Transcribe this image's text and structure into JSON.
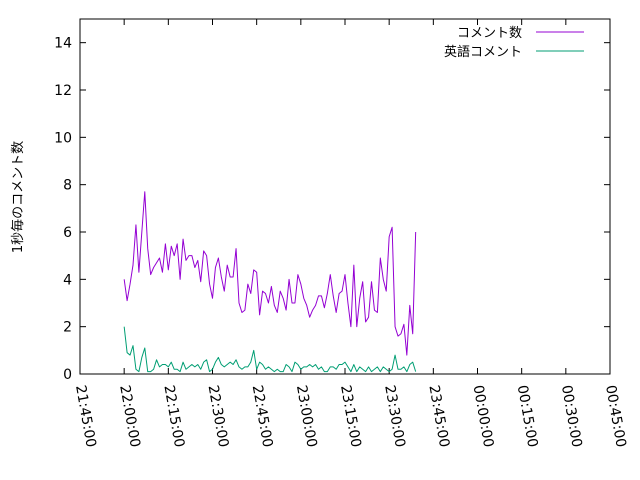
{
  "chart_data": {
    "type": "line",
    "title": "",
    "xlabel": "",
    "ylabel": "1秒毎のコメント数",
    "x_unit": "time (HH:MM:SS, one point per minute)",
    "xlim": [
      "21:45:00",
      "00:45:00"
    ],
    "ylim": [
      0,
      15
    ],
    "x_ticks": [
      "21:45:00",
      "22:00:00",
      "22:15:00",
      "22:30:00",
      "22:45:00",
      "23:00:00",
      "23:15:00",
      "23:30:00",
      "23:45:00",
      "00:00:00",
      "00:15:00",
      "00:30:00",
      "00:45:00"
    ],
    "y_ticks": [
      "0",
      "2",
      "4",
      "6",
      "8",
      "10",
      "12",
      "14"
    ],
    "grid": false,
    "legend_position": "top-right",
    "x_start": "22:00:00",
    "x_step_minutes": 1,
    "series": [
      {
        "name": "コメント数",
        "color": "#9400d3",
        "values": [
          4.0,
          3.1,
          3.8,
          4.6,
          6.3,
          4.3,
          6.0,
          7.7,
          5.3,
          4.2,
          4.5,
          4.7,
          4.9,
          4.3,
          5.5,
          4.4,
          5.4,
          5.0,
          5.5,
          4.0,
          5.7,
          4.8,
          5.0,
          5.0,
          4.5,
          4.8,
          3.9,
          5.2,
          5.0,
          3.8,
          3.2,
          4.5,
          4.9,
          4.1,
          3.5,
          4.6,
          4.1,
          4.1,
          5.3,
          3.0,
          2.6,
          2.7,
          3.8,
          3.4,
          4.4,
          4.3,
          2.5,
          3.5,
          3.4,
          3.0,
          3.7,
          2.9,
          2.6,
          3.5,
          3.2,
          2.7,
          4.0,
          3.0,
          3.0,
          4.2,
          3.8,
          3.2,
          2.9,
          2.4,
          2.7,
          2.9,
          3.3,
          3.3,
          2.8,
          3.4,
          4.2,
          3.3,
          2.6,
          3.4,
          3.5,
          4.2,
          3.0,
          2.0,
          4.6,
          2.0,
          3.2,
          3.9,
          2.2,
          2.4,
          3.9,
          2.7,
          2.6,
          4.9,
          4.0,
          3.5,
          5.8,
          6.2,
          2.0,
          1.6,
          1.7,
          2.1,
          0.8,
          2.9,
          1.7,
          6.0
        ]
      },
      {
        "name": "英語コメント",
        "color": "#009e73",
        "values": [
          2.0,
          0.9,
          0.8,
          1.2,
          0.2,
          0.1,
          0.7,
          1.1,
          0.1,
          0.1,
          0.2,
          0.6,
          0.3,
          0.4,
          0.4,
          0.3,
          0.5,
          0.2,
          0.2,
          0.1,
          0.5,
          0.2,
          0.3,
          0.4,
          0.3,
          0.4,
          0.2,
          0.5,
          0.6,
          0.1,
          0.2,
          0.5,
          0.7,
          0.4,
          0.3,
          0.4,
          0.5,
          0.4,
          0.6,
          0.3,
          0.2,
          0.3,
          0.3,
          0.5,
          1.0,
          0.2,
          0.5,
          0.4,
          0.2,
          0.3,
          0.2,
          0.1,
          0.2,
          0.1,
          0.1,
          0.4,
          0.3,
          0.1,
          0.5,
          0.4,
          0.2,
          0.3,
          0.3,
          0.4,
          0.3,
          0.4,
          0.2,
          0.3,
          0.1,
          0.1,
          0.3,
          0.3,
          0.2,
          0.4,
          0.4,
          0.5,
          0.3,
          0.1,
          0.4,
          0.1,
          0.3,
          0.2,
          0.1,
          0.3,
          0.1,
          0.2,
          0.3,
          0.1,
          0.3,
          0.2,
          0.1,
          0.2,
          0.8,
          0.2,
          0.2,
          0.3,
          0.1,
          0.4,
          0.5,
          0.1
        ]
      }
    ]
  }
}
